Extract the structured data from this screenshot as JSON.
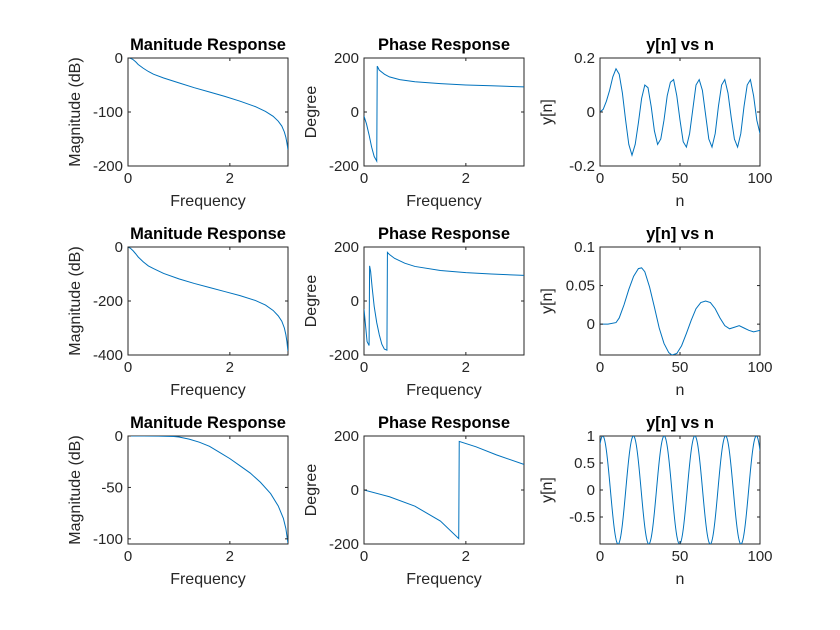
{
  "colors": {
    "line": "#0072BD",
    "axis": "#262626",
    "background": "#ffffff"
  },
  "chart_data": [
    {
      "type": "line",
      "title": "Manitude Response",
      "xlabel": "Frequency",
      "ylabel": "Magnitude (dB)",
      "xlim": [
        0,
        3.14159
      ],
      "ylim": [
        -200,
        0
      ],
      "xticks": [
        0,
        2
      ],
      "yticks": [
        -200,
        -100,
        0
      ],
      "xticklabels": [
        "0",
        "2"
      ],
      "yticklabels": [
        "-200",
        "-100",
        "0"
      ],
      "series": [
        {
          "x": [
            0,
            0.03,
            0.06,
            0.1,
            0.15,
            0.2,
            0.3,
            0.4,
            0.5,
            0.7,
            1.0,
            1.3,
            1.6,
            1.9,
            2.2,
            2.5,
            2.7,
            2.85,
            2.95,
            3.02,
            3.07,
            3.1,
            3.12,
            3.13,
            3.14
          ],
          "y": [
            0,
            0,
            -1,
            -3,
            -7,
            -12,
            -19,
            -25,
            -30,
            -37,
            -46,
            -55,
            -63,
            -71,
            -80,
            -90,
            -99,
            -108,
            -117,
            -126,
            -137,
            -147,
            -157,
            -163,
            -170
          ]
        }
      ]
    },
    {
      "type": "line",
      "title": "Phase Response",
      "xlabel": "Frequency",
      "ylabel": "Degree",
      "xlim": [
        0,
        3.14159
      ],
      "ylim": [
        -200,
        200
      ],
      "xticks": [
        0,
        2
      ],
      "yticks": [
        -200,
        0,
        200
      ],
      "xticklabels": [
        "0",
        "2"
      ],
      "yticklabels": [
        "-200",
        "0",
        "200"
      ],
      "series": [
        {
          "x": [
            0,
            0.05,
            0.1,
            0.15,
            0.2,
            0.25,
            0.26,
            0.3,
            0.4,
            0.5,
            0.7,
            1.0,
            1.5,
            2.0,
            2.5,
            3.14
          ],
          "y": [
            -15,
            -45,
            -85,
            -130,
            -165,
            -182,
            170,
            155,
            140,
            130,
            120,
            112,
            105,
            100,
            97,
            93
          ]
        }
      ]
    },
    {
      "type": "line",
      "title": "y[n] vs n",
      "xlabel": "n",
      "ylabel": "y[n]",
      "xlim": [
        0,
        100
      ],
      "ylim": [
        -0.2,
        0.2
      ],
      "xticks": [
        0,
        50,
        100
      ],
      "yticks": [
        -0.2,
        0,
        0.2
      ],
      "xticklabels": [
        "0",
        "50",
        "100"
      ],
      "yticklabels": [
        "-0.2",
        "0",
        "0.2"
      ],
      "series": [
        {
          "x": [
            0,
            2,
            4,
            6,
            8,
            10,
            12,
            14,
            16,
            18,
            20,
            22,
            24,
            26,
            28,
            30,
            32,
            34,
            36,
            38,
            40,
            42,
            44,
            46,
            48,
            50,
            52,
            54,
            56,
            58,
            60,
            62,
            64,
            66,
            68,
            70,
            72,
            74,
            76,
            78,
            80,
            82,
            84,
            86,
            88,
            90,
            92,
            94,
            96,
            98,
            100
          ],
          "y": [
            0,
            0.01,
            0.04,
            0.08,
            0.13,
            0.16,
            0.14,
            0.07,
            -0.03,
            -0.12,
            -0.16,
            -0.12,
            -0.04,
            0.05,
            0.1,
            0.09,
            0.02,
            -0.07,
            -0.12,
            -0.1,
            -0.03,
            0.06,
            0.11,
            0.12,
            0.06,
            -0.03,
            -0.11,
            -0.13,
            -0.08,
            0.01,
            0.1,
            0.12,
            0.08,
            -0.01,
            -0.1,
            -0.13,
            -0.08,
            0.02,
            0.1,
            0.12,
            0.07,
            -0.02,
            -0.1,
            -0.13,
            -0.08,
            0.02,
            0.1,
            0.12,
            0.06,
            -0.03,
            -0.08
          ]
        }
      ]
    },
    {
      "type": "line",
      "title": "Manitude Response",
      "xlabel": "Frequency",
      "ylabel": "Magnitude (dB)",
      "xlim": [
        0,
        3.14159
      ],
      "ylim": [
        -400,
        0
      ],
      "xticks": [
        0,
        2
      ],
      "yticks": [
        -400,
        -200,
        0
      ],
      "xticklabels": [
        "0",
        "2"
      ],
      "yticklabels": [
        "-400",
        "-200",
        "0"
      ],
      "series": [
        {
          "x": [
            0,
            0.05,
            0.1,
            0.15,
            0.2,
            0.3,
            0.4,
            0.5,
            0.7,
            1.0,
            1.3,
            1.6,
            1.9,
            2.2,
            2.5,
            2.7,
            2.85,
            2.95,
            3.02,
            3.07,
            3.1,
            3.12,
            3.13,
            3.14
          ],
          "y": [
            0,
            -5,
            -14,
            -25,
            -37,
            -55,
            -70,
            -80,
            -98,
            -118,
            -135,
            -150,
            -165,
            -180,
            -198,
            -215,
            -235,
            -255,
            -275,
            -300,
            -325,
            -350,
            -368,
            -385
          ]
        }
      ]
    },
    {
      "type": "line",
      "title": "Phase Response",
      "xlabel": "Frequency",
      "ylabel": "Degree",
      "xlim": [
        0,
        3.14159
      ],
      "ylim": [
        -200,
        200
      ],
      "xticks": [
        0,
        2
      ],
      "yticks": [
        -200,
        0,
        200
      ],
      "xticklabels": [
        "0",
        "2"
      ],
      "yticklabels": [
        "-200",
        "0",
        "200"
      ],
      "series": [
        {
          "x": [
            0,
            0.03,
            0.06,
            0.1,
            0.11,
            0.13,
            0.16,
            0.2,
            0.25,
            0.3,
            0.35,
            0.4,
            0.45,
            0.46,
            0.5,
            0.6,
            0.8,
            1.0,
            1.5,
            2.0,
            2.5,
            3.14
          ],
          "y": [
            -30,
            -90,
            -150,
            -165,
            130,
            110,
            50,
            -20,
            -80,
            -125,
            -160,
            -178,
            -182,
            180,
            172,
            158,
            140,
            128,
            113,
            105,
            100,
            95
          ]
        }
      ]
    },
    {
      "type": "line",
      "title": "y[n] vs n",
      "xlabel": "n",
      "ylabel": "y[n]",
      "xlim": [
        0,
        100
      ],
      "ylim": [
        -0.04,
        0.1
      ],
      "xticks": [
        0,
        50,
        100
      ],
      "yticks": [
        0,
        0.05,
        0.1
      ],
      "xticklabels": [
        "0",
        "50",
        "100"
      ],
      "yticklabels": [
        "0",
        "0.05",
        "0.1"
      ],
      "series": [
        {
          "x": [
            0,
            5,
            10,
            12,
            15,
            18,
            21,
            24,
            26,
            28,
            31,
            34,
            37,
            40,
            43,
            45,
            48,
            51,
            54,
            57,
            60,
            63,
            66,
            69,
            72,
            75,
            78,
            81,
            84,
            87,
            90,
            93,
            96,
            100
          ],
          "y": [
            0,
            0,
            0.002,
            0.008,
            0.025,
            0.045,
            0.062,
            0.072,
            0.073,
            0.068,
            0.048,
            0.022,
            -0.005,
            -0.025,
            -0.037,
            -0.04,
            -0.038,
            -0.028,
            -0.012,
            0.005,
            0.02,
            0.028,
            0.03,
            0.028,
            0.02,
            0.008,
            -0.002,
            -0.006,
            -0.004,
            -0.002,
            -0.005,
            -0.008,
            -0.01,
            -0.008
          ]
        }
      ]
    },
    {
      "type": "line",
      "title": "Manitude Response",
      "xlabel": "Frequency",
      "ylabel": "Magnitude (dB)",
      "xlim": [
        0,
        3.14159
      ],
      "ylim": [
        -105,
        0
      ],
      "xticks": [
        0,
        2
      ],
      "yticks": [
        -100,
        -50,
        0
      ],
      "xticklabels": [
        "0",
        "2"
      ],
      "yticklabels": [
        "-100",
        "-50",
        "0"
      ],
      "series": [
        {
          "x": [
            0,
            0.3,
            0.6,
            0.9,
            1.0,
            1.2,
            1.4,
            1.6,
            1.8,
            2.0,
            2.2,
            2.4,
            2.6,
            2.8,
            2.95,
            3.05,
            3.1,
            3.14
          ],
          "y": [
            0,
            0,
            -0.1,
            -0.5,
            -1,
            -3,
            -6,
            -10,
            -16,
            -22,
            -29,
            -36,
            -45,
            -56,
            -68,
            -80,
            -90,
            -104
          ]
        }
      ]
    },
    {
      "type": "line",
      "title": "Phase Response",
      "xlabel": "Frequency",
      "ylabel": "Degree",
      "xlim": [
        0,
        3.14159
      ],
      "ylim": [
        -200,
        200
      ],
      "xticks": [
        0,
        2
      ],
      "yticks": [
        -200,
        0,
        200
      ],
      "xticklabels": [
        "0",
        "2"
      ],
      "yticklabels": [
        "-200",
        "0",
        "200"
      ],
      "series": [
        {
          "x": [
            0,
            0.5,
            1.0,
            1.5,
            1.86,
            1.87,
            2.2,
            2.6,
            3.14
          ],
          "y": [
            0,
            -25,
            -60,
            -115,
            -180,
            180,
            160,
            130,
            95
          ]
        }
      ]
    },
    {
      "type": "line",
      "title": "y[n] vs n",
      "xlabel": "n",
      "ylabel": "y[n]",
      "xlim": [
        0,
        100
      ],
      "ylim": [
        -1,
        1
      ],
      "xticks": [
        0,
        50,
        100
      ],
      "yticks": [
        -0.5,
        0,
        0.5,
        1
      ],
      "xticklabels": [
        "0",
        "50",
        "100"
      ],
      "yticklabels": [
        "-0.5",
        "0",
        "0.5",
        "1"
      ],
      "wave": {
        "form": "cosine",
        "amplitude": 1,
        "period": 19.2,
        "phase_shift": 1.7,
        "samples": 401
      }
    }
  ]
}
